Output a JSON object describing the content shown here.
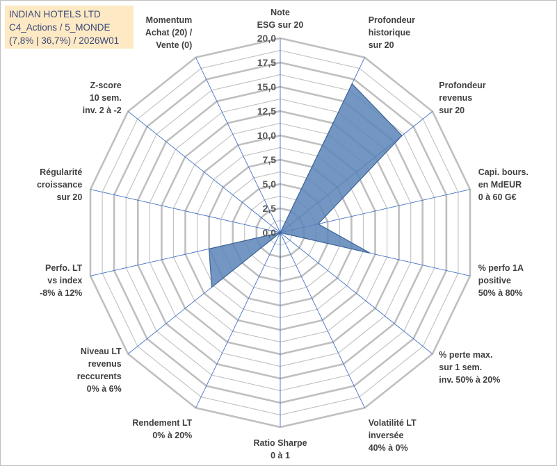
{
  "header": {
    "lines": [
      "INDIAN HOTELS LTD",
      "C4_Actions / 5_MONDE",
      "(7,8% | 36,7%) / 2026W01"
    ]
  },
  "chart_data": {
    "type": "radar",
    "rmin": 0,
    "rmax": 20,
    "ticks": [
      "0,0",
      "2,5",
      "5,0",
      "7,5",
      "10,0",
      "12,5",
      "15,0",
      "17,5",
      "20,0"
    ],
    "grid_rings": 16,
    "axes": [
      {
        "label": [
          "Note",
          "ESG sur 20"
        ],
        "value": 0
      },
      {
        "label": [
          "Profondeur",
          "historique",
          "sur 20"
        ],
        "value": 17
      },
      {
        "label": [
          "Profondeur",
          "revenus",
          "sur 20"
        ],
        "value": 16
      },
      {
        "label": [
          "Capi. bours.",
          "en MdEUR",
          "0 à 60 G€"
        ],
        "value": 4
      },
      {
        "label": [
          "% perfo 1A",
          "positive",
          "50% à 80%"
        ],
        "value": 9.5
      },
      {
        "label": [
          "% perte max.",
          "sur 1 sem.",
          "inv. 50% à 20%"
        ],
        "value": 0
      },
      {
        "label": [
          "Volatilité LT",
          "inversée",
          "40% à 0%"
        ],
        "value": 0
      },
      {
        "label": [
          "Ratio Sharpe",
          "0 à 1"
        ],
        "value": 4.5
      },
      {
        "label": [
          "Rendement LT",
          "0% à 20%"
        ],
        "value": 0
      },
      {
        "label": [
          "Niveau LT",
          "revenus",
          "reccurents",
          "0% à 6%"
        ],
        "value": 9
      },
      {
        "label": [
          "Perfo. LT",
          "vs index",
          "-8% à 12%"
        ],
        "value": 7.5
      },
      {
        "label": [
          "Régularité",
          "croissance",
          "sur 20"
        ],
        "value": 0
      },
      {
        "label": [
          "Z-score",
          "10 sem.",
          "inv. 2 à -2"
        ],
        "value": 0
      },
      {
        "label": [
          "Momentum",
          "Achat (20) /",
          "Vente (0)"
        ],
        "value": 0
      }
    ],
    "colors": {
      "grid": "#bfbfbf",
      "spoke": "#4472c4",
      "fill": "#5b84b8",
      "stroke": "#3d6496",
      "title_bg": "#fde9c4",
      "title_text": "#3b4a7a"
    }
  }
}
